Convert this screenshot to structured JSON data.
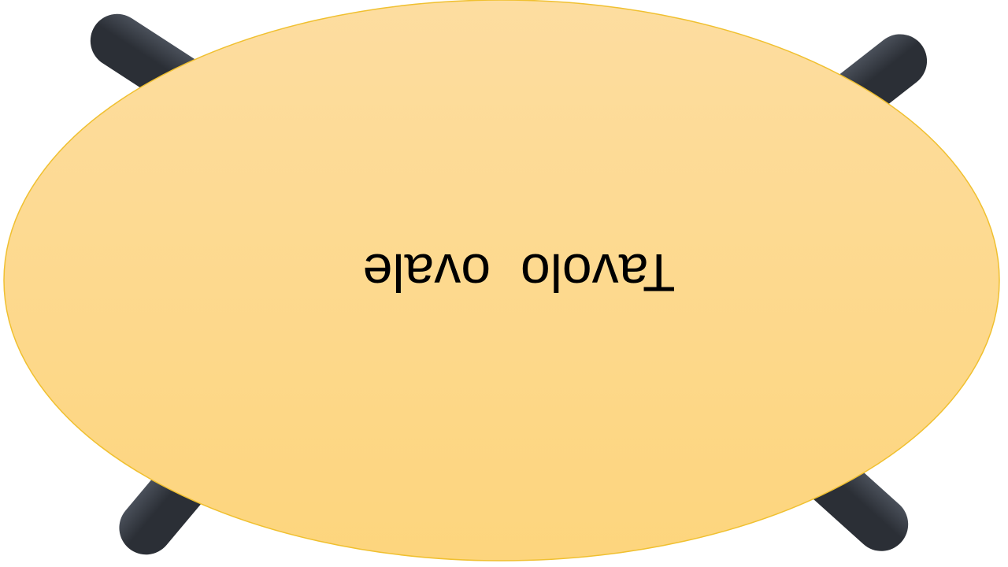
{
  "table": {
    "label": "Tavolo  ovale",
    "shape": "oval",
    "orientation": "upside-down"
  },
  "colors": {
    "tabletop_top": "#fdddA0",
    "tabletop_bottom": "#fdd57d",
    "tabletop_outline": "#f0c030",
    "legs": "#2b2f36",
    "leg_highlight": "#4a505a"
  },
  "legs": {
    "count": 4,
    "icon": "table-leg"
  }
}
